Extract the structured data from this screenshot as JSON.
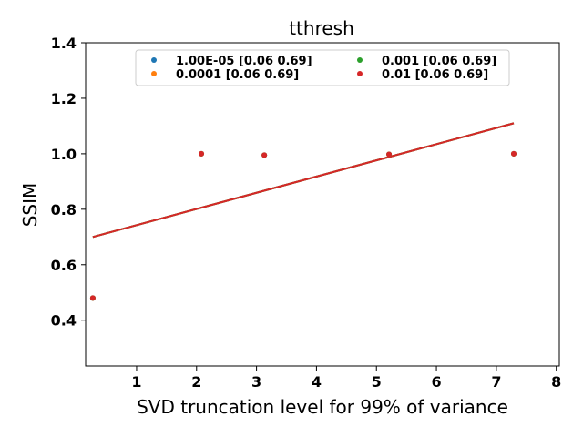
{
  "chart_data": {
    "type": "scatter",
    "title": "tthresh",
    "xlabel": "SVD truncation level for 99% of variance",
    "ylabel": "SSIM",
    "xlim": [
      0.15,
      8.05
    ],
    "ylim": [
      0.235,
      1.4
    ],
    "xticks": [
      1,
      2,
      3,
      4,
      5,
      6,
      7,
      8
    ],
    "yticks": [
      0.4,
      0.6,
      0.8,
      1.0,
      1.2,
      1.4
    ],
    "ytick_labels": [
      "0.4",
      "0.6",
      "0.8",
      "1.0",
      "1.2",
      "1.4"
    ],
    "grid": false,
    "legend_placement": "upper-center",
    "legend_columns": 2,
    "series": [
      {
        "name": "1.00E-05 [0.06 0.69]",
        "color": "#1f77b4",
        "points": [
          [
            0.27,
            0.48
          ],
          [
            2.08,
            1.0
          ],
          [
            3.13,
            0.995
          ],
          [
            5.21,
            0.998
          ],
          [
            7.29,
            1.0
          ]
        ],
        "fit": [
          [
            0.27,
            0.7
          ],
          [
            7.29,
            1.11
          ]
        ]
      },
      {
        "name": "0.0001 [0.06 0.69]",
        "color": "#ff7f0e",
        "points": [
          [
            0.27,
            0.48
          ],
          [
            2.08,
            1.0
          ],
          [
            3.13,
            0.995
          ],
          [
            5.21,
            0.998
          ],
          [
            7.29,
            1.0
          ]
        ],
        "fit": [
          [
            0.27,
            0.7
          ],
          [
            7.29,
            1.11
          ]
        ]
      },
      {
        "name": "0.001 [0.06 0.69]",
        "color": "#2ca02c",
        "points": [
          [
            0.27,
            0.48
          ],
          [
            2.08,
            1.0
          ],
          [
            3.13,
            0.995
          ],
          [
            5.21,
            0.998
          ],
          [
            7.29,
            1.0
          ]
        ],
        "fit": [
          [
            0.27,
            0.7
          ],
          [
            7.29,
            1.11
          ]
        ]
      },
      {
        "name": "0.01 [0.06 0.69]",
        "color": "#d62728",
        "points": [
          [
            0.27,
            0.48
          ],
          [
            2.08,
            1.0
          ],
          [
            3.13,
            0.995
          ],
          [
            5.21,
            0.998
          ],
          [
            7.29,
            1.0
          ]
        ],
        "fit": [
          [
            0.27,
            0.7
          ],
          [
            7.29,
            1.11
          ]
        ]
      }
    ]
  }
}
